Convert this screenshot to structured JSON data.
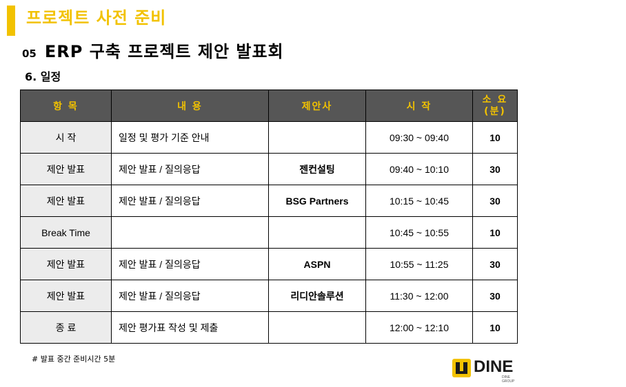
{
  "header": {
    "section_title": "프로젝트 사전 준비",
    "heading_number": "05",
    "heading_title": "ERP 구축 프로젝트 제안 발표회",
    "subheading": "6. 일정"
  },
  "accent_color": "#f2c200",
  "header_row_color": "#565656",
  "table": {
    "headers": {
      "item": "항 목",
      "content": "내 용",
      "company": "제안사",
      "time": "시 작",
      "duration_line1": "소 요",
      "duration_line2": "(분)"
    },
    "rows": [
      {
        "item": "시  작",
        "content": "일정 및 평가 기준 안내",
        "company": "",
        "time": "09:30 ~ 09:40",
        "duration": "10"
      },
      {
        "item": "제안 발표",
        "content": "제안 발표 / 질의응답",
        "company": "젠컨설팅",
        "time": "09:40 ~ 10:10",
        "duration": "30"
      },
      {
        "item": "제안 발표",
        "content": "제안 발표 / 질의응답",
        "company": "BSG Partners",
        "time": "10:15 ~ 10:45",
        "duration": "30"
      },
      {
        "item": "Break Time",
        "content": "",
        "company": "",
        "time": "10:45 ~ 10:55",
        "duration": "10"
      },
      {
        "item": "제안 발표",
        "content": "제안 발표 / 질의응답",
        "company": "ASPN",
        "time": "10:55 ~ 11:25",
        "duration": "30"
      },
      {
        "item": "제안 발표",
        "content": "제안 발표 / 질의응답",
        "company": "리디안솔루션",
        "time": "11:30 ~ 12:00",
        "duration": "30"
      },
      {
        "item": "종  료",
        "content": "제안 평가표 작성 및 제출",
        "company": "",
        "time": "12:00 ~ 12:10",
        "duration": "10"
      }
    ]
  },
  "footnote": "# 발표 중간 준비시간 5분",
  "logo": {
    "text": "DINE",
    "subtext": "DINE GROUP",
    "icon": "dine-logo-icon"
  }
}
